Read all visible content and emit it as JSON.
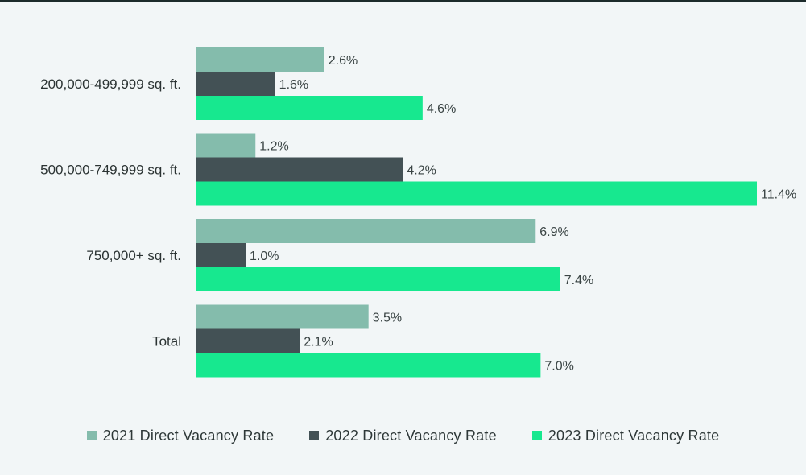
{
  "chart_data": {
    "type": "bar",
    "orientation": "horizontal",
    "categories": [
      "200,000-499,999 sq. ft.",
      "500,000-749,999 sq. ft.",
      "750,000+ sq. ft.",
      "Total"
    ],
    "series": [
      {
        "name": "2021 Direct Vacancy Rate",
        "values": [
          2.6,
          1.2,
          6.9,
          3.5
        ],
        "labels": [
          "2.6%",
          "1.2%",
          "6.9%",
          "3.5%"
        ],
        "color": "#84bcac"
      },
      {
        "name": "2022 Direct Vacancy Rate",
        "values": [
          1.6,
          4.2,
          1.0,
          2.1
        ],
        "labels": [
          "1.6%",
          "4.2%",
          "1.0%",
          "2.1%"
        ],
        "color": "#435155"
      },
      {
        "name": "2023 Direct Vacancy Rate",
        "values": [
          4.6,
          11.4,
          7.4,
          7.0
        ],
        "labels": [
          "4.6%",
          "11.4%",
          "7.4%",
          "7.0%"
        ],
        "color": "#17e88f"
      }
    ],
    "xlim": [
      0,
      11.4
    ],
    "title": "",
    "xlabel": "",
    "ylabel": "",
    "grid": false,
    "legend_position": "bottom-center"
  }
}
